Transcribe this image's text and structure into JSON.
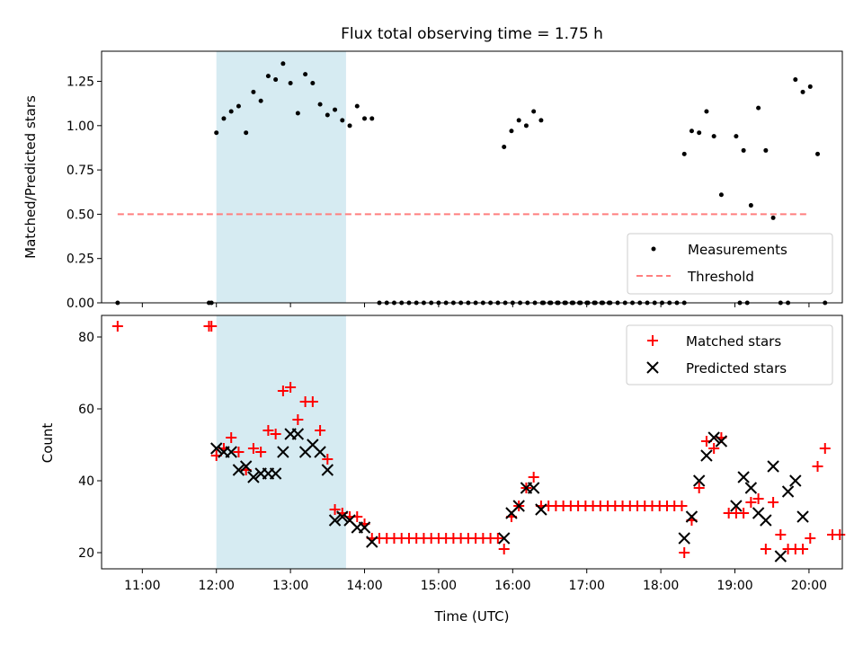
{
  "chart_data": [
    {
      "type": "scatter",
      "title": "Flux total observing time = 1.75 h",
      "xlabel": "",
      "ylabel": "Matched/Predicted stars",
      "xlim": [
        "10:27",
        "20:27"
      ],
      "ylim": [
        0,
        1.42
      ],
      "yticks": [
        "0.00",
        "0.25",
        "0.50",
        "0.75",
        "1.00",
        "1.25"
      ],
      "highlight_span": [
        "12:00",
        "13:45"
      ],
      "legend_position": "lower-right",
      "series": [
        {
          "name": "Measurements",
          "color": "#000000",
          "marker": "dot",
          "points": [
            [
              "10:40",
              0
            ],
            [
              "11:54",
              0
            ],
            [
              "11:56",
              0
            ],
            [
              "12:00",
              0.96
            ],
            [
              "12:06",
              1.04
            ],
            [
              "12:12",
              1.08
            ],
            [
              "12:18",
              1.11
            ],
            [
              "12:24",
              0.96
            ],
            [
              "12:30",
              1.19
            ],
            [
              "12:36",
              1.14
            ],
            [
              "12:42",
              1.28
            ],
            [
              "12:48",
              1.26
            ],
            [
              "12:54",
              1.35
            ],
            [
              "13:00",
              1.24
            ],
            [
              "13:06",
              1.07
            ],
            [
              "13:12",
              1.29
            ],
            [
              "13:18",
              1.24
            ],
            [
              "13:24",
              1.12
            ],
            [
              "13:30",
              1.06
            ],
            [
              "13:36",
              1.09
            ],
            [
              "13:42",
              1.03
            ],
            [
              "13:48",
              1.0
            ],
            [
              "13:54",
              1.11
            ],
            [
              "14:00",
              1.04
            ],
            [
              "14:06",
              1.04
            ],
            [
              "14:12",
              0
            ],
            [
              "14:18",
              0
            ],
            [
              "14:24",
              0
            ],
            [
              "14:30",
              0
            ],
            [
              "14:36",
              0
            ],
            [
              "14:42",
              0
            ],
            [
              "14:48",
              0
            ],
            [
              "14:54",
              0
            ],
            [
              "15:00",
              0
            ],
            [
              "15:06",
              0
            ],
            [
              "15:12",
              0
            ],
            [
              "15:18",
              0
            ],
            [
              "15:24",
              0
            ],
            [
              "15:30",
              0
            ],
            [
              "15:36",
              0
            ],
            [
              "15:42",
              0
            ],
            [
              "15:48",
              0
            ],
            [
              "15:54",
              0
            ],
            [
              "16:00",
              0
            ],
            [
              "16:06",
              0
            ],
            [
              "16:12",
              0
            ],
            [
              "16:18",
              0
            ],
            [
              "16:24",
              0
            ],
            [
              "16:30",
              0
            ],
            [
              "16:36",
              0
            ],
            [
              "16:42",
              0
            ],
            [
              "16:48",
              0
            ],
            [
              "16:54",
              0
            ],
            [
              "17:00",
              0
            ],
            [
              "17:06",
              0
            ],
            [
              "17:12",
              0
            ],
            [
              "17:18",
              0
            ],
            [
              "15:53",
              0.88
            ],
            [
              "15:59",
              0.97
            ],
            [
              "16:05",
              1.03
            ],
            [
              "16:11",
              1.0
            ],
            [
              "16:17",
              1.08
            ],
            [
              "16:23",
              1.03
            ],
            [
              "16:25",
              0
            ],
            [
              "16:31",
              0
            ],
            [
              "16:37",
              0
            ],
            [
              "16:43",
              0
            ],
            [
              "16:49",
              0
            ],
            [
              "16:55",
              0
            ],
            [
              "17:01",
              0
            ],
            [
              "17:07",
              0
            ],
            [
              "17:13",
              0
            ],
            [
              "17:19",
              0
            ],
            [
              "17:25",
              0
            ],
            [
              "17:31",
              0
            ],
            [
              "17:37",
              0
            ],
            [
              "17:43",
              0
            ],
            [
              "17:49",
              0
            ],
            [
              "17:55",
              0
            ],
            [
              "18:01",
              0
            ],
            [
              "18:07",
              0
            ],
            [
              "18:13",
              0
            ],
            [
              "18:19",
              0
            ],
            [
              "18:19",
              0.84
            ],
            [
              "18:25",
              0.97
            ],
            [
              "18:31",
              0.96
            ],
            [
              "18:37",
              1.08
            ],
            [
              "18:43",
              0.94
            ],
            [
              "18:49",
              0.61
            ],
            [
              "19:04",
              0
            ],
            [
              "19:10",
              0
            ],
            [
              "19:01",
              0.94
            ],
            [
              "19:07",
              0.86
            ],
            [
              "19:13",
              0.55
            ],
            [
              "19:19",
              1.1
            ],
            [
              "19:25",
              0.86
            ],
            [
              "19:31",
              0.48
            ],
            [
              "19:37",
              0
            ],
            [
              "19:43",
              0
            ],
            [
              "19:49",
              1.26
            ],
            [
              "19:55",
              1.19
            ],
            [
              "20:01",
              1.22
            ],
            [
              "20:07",
              0.84
            ],
            [
              "20:13",
              0
            ]
          ]
        },
        {
          "name": "Threshold",
          "color": "#ff7f7f",
          "style": "dashed",
          "x": [
            "10:40",
            "20:00"
          ],
          "y": [
            0.5,
            0.5
          ]
        }
      ]
    },
    {
      "type": "scatter",
      "title": "",
      "xlabel": "Time (UTC)",
      "ylabel": "Count",
      "xlim": [
        "10:27",
        "20:27"
      ],
      "ylim": [
        15.5,
        86
      ],
      "yticks": [
        "20",
        "40",
        "60",
        "80"
      ],
      "xticks": [
        "11:00",
        "12:00",
        "13:00",
        "14:00",
        "15:00",
        "16:00",
        "17:00",
        "18:00",
        "19:00",
        "20:00"
      ],
      "highlight_span": [
        "12:00",
        "13:45"
      ],
      "legend_position": "upper-right",
      "series": [
        {
          "name": "Matched stars",
          "color": "#ff0000",
          "marker": "plus",
          "points": [
            [
              "10:40",
              83
            ],
            [
              "11:54",
              83
            ],
            [
              "11:56",
              83
            ],
            [
              "12:00",
              47
            ],
            [
              "12:06",
              49
            ],
            [
              "12:12",
              52
            ],
            [
              "12:18",
              48
            ],
            [
              "12:24",
              43
            ],
            [
              "12:30",
              49
            ],
            [
              "12:36",
              48
            ],
            [
              "12:42",
              54
            ],
            [
              "12:48",
              53
            ],
            [
              "12:54",
              65
            ],
            [
              "13:00",
              66
            ],
            [
              "13:06",
              57
            ],
            [
              "13:12",
              62
            ],
            [
              "13:18",
              62
            ],
            [
              "13:24",
              54
            ],
            [
              "13:30",
              46
            ],
            [
              "13:36",
              32
            ],
            [
              "13:42",
              31
            ],
            [
              "13:48",
              30
            ],
            [
              "13:54",
              30
            ],
            [
              "14:00",
              28
            ],
            [
              "14:06",
              24
            ],
            [
              "14:12",
              24
            ],
            [
              "14:18",
              24
            ],
            [
              "14:24",
              24
            ],
            [
              "14:30",
              24
            ],
            [
              "14:36",
              24
            ],
            [
              "14:42",
              24
            ],
            [
              "14:48",
              24
            ],
            [
              "14:54",
              24
            ],
            [
              "15:00",
              24
            ],
            [
              "15:06",
              24
            ],
            [
              "15:12",
              24
            ],
            [
              "15:18",
              24
            ],
            [
              "15:24",
              24
            ],
            [
              "15:30",
              24
            ],
            [
              "15:36",
              24
            ],
            [
              "15:42",
              24
            ],
            [
              "15:48",
              24
            ],
            [
              "15:53",
              21
            ],
            [
              "15:59",
              30
            ],
            [
              "16:05",
              33
            ],
            [
              "16:11",
              38
            ],
            [
              "16:17",
              41
            ],
            [
              "16:23",
              33
            ],
            [
              "16:29",
              33
            ],
            [
              "16:35",
              33
            ],
            [
              "16:41",
              33
            ],
            [
              "16:47",
              33
            ],
            [
              "16:53",
              33
            ],
            [
              "16:59",
              33
            ],
            [
              "17:05",
              33
            ],
            [
              "17:11",
              33
            ],
            [
              "17:17",
              33
            ],
            [
              "17:23",
              33
            ],
            [
              "17:29",
              33
            ],
            [
              "17:35",
              33
            ],
            [
              "17:41",
              33
            ],
            [
              "17:47",
              33
            ],
            [
              "17:53",
              33
            ],
            [
              "17:59",
              33
            ],
            [
              "18:05",
              33
            ],
            [
              "18:11",
              33
            ],
            [
              "18:17",
              33
            ],
            [
              "18:19",
              20
            ],
            [
              "18:25",
              29
            ],
            [
              "18:31",
              38
            ],
            [
              "18:37",
              51
            ],
            [
              "18:43",
              49
            ],
            [
              "18:49",
              52
            ],
            [
              "18:55",
              31
            ],
            [
              "19:01",
              31
            ],
            [
              "19:07",
              31
            ],
            [
              "19:13",
              34
            ],
            [
              "19:19",
              35
            ],
            [
              "19:25",
              21
            ],
            [
              "19:31",
              34
            ],
            [
              "19:37",
              25
            ],
            [
              "19:43",
              21
            ],
            [
              "19:49",
              21
            ],
            [
              "19:55",
              21
            ],
            [
              "20:01",
              24
            ],
            [
              "20:07",
              44
            ],
            [
              "20:13",
              49
            ],
            [
              "20:19",
              25
            ],
            [
              "20:25",
              25
            ]
          ]
        },
        {
          "name": "Predicted stars",
          "color": "#000000",
          "marker": "x",
          "points": [
            [
              "12:00",
              49
            ],
            [
              "12:06",
              48
            ],
            [
              "12:12",
              48
            ],
            [
              "12:18",
              43
            ],
            [
              "12:24",
              44
            ],
            [
              "12:30",
              41
            ],
            [
              "12:36",
              42
            ],
            [
              "12:42",
              42
            ],
            [
              "12:48",
              42
            ],
            [
              "12:54",
              48
            ],
            [
              "13:00",
              53
            ],
            [
              "13:06",
              53
            ],
            [
              "13:12",
              48
            ],
            [
              "13:18",
              50
            ],
            [
              "13:24",
              48
            ],
            [
              "13:30",
              43
            ],
            [
              "13:36",
              29
            ],
            [
              "13:42",
              30
            ],
            [
              "13:48",
              29
            ],
            [
              "13:54",
              27
            ],
            [
              "14:00",
              27
            ],
            [
              "14:06",
              23
            ],
            [
              "15:53",
              24
            ],
            [
              "15:59",
              31
            ],
            [
              "16:05",
              33
            ],
            [
              "16:11",
              38
            ],
            [
              "16:17",
              38
            ],
            [
              "16:23",
              32
            ],
            [
              "18:19",
              24
            ],
            [
              "18:25",
              30
            ],
            [
              "18:31",
              40
            ],
            [
              "18:37",
              47
            ],
            [
              "18:43",
              52
            ],
            [
              "18:49",
              51
            ],
            [
              "19:01",
              33
            ],
            [
              "19:07",
              41
            ],
            [
              "19:13",
              38
            ],
            [
              "19:19",
              31
            ],
            [
              "19:25",
              29
            ],
            [
              "19:31",
              44
            ],
            [
              "19:37",
              19
            ],
            [
              "19:43",
              37
            ],
            [
              "19:49",
              40
            ],
            [
              "19:55",
              30
            ]
          ]
        }
      ]
    }
  ]
}
